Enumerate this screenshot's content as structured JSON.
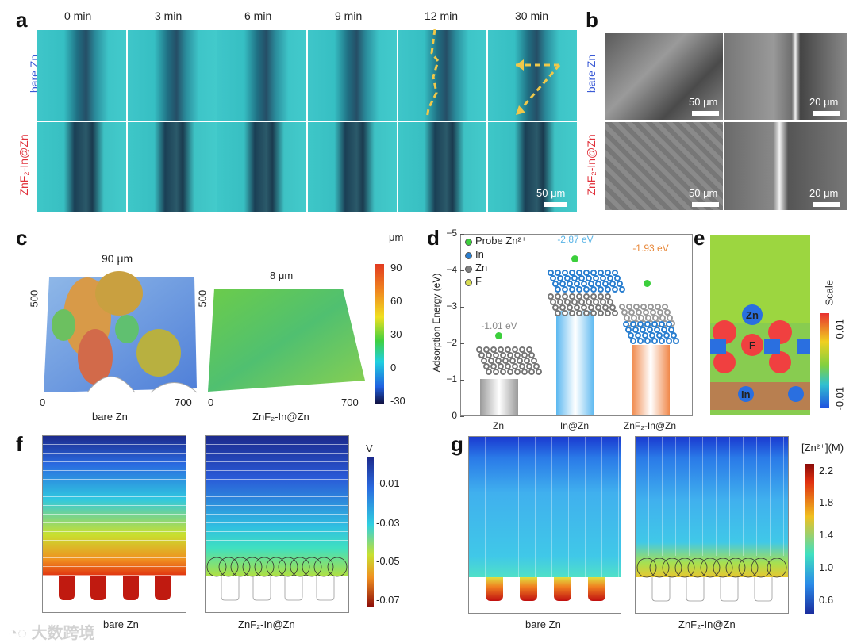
{
  "panel_a": {
    "label": "a",
    "times": [
      "0 min",
      "3 min",
      "6 min",
      "9 min",
      "12 min",
      "30 min"
    ],
    "row_labels": [
      "bare Zn",
      "ZnF₂-In@Zn"
    ],
    "scale_bar": "50 μm"
  },
  "panel_b": {
    "label": "b",
    "row_labels": [
      "bare Zn",
      "ZnF₂-In@Zn"
    ],
    "scale_bars": [
      "50 μm",
      "20 μm",
      "50 μm",
      "20 μm"
    ]
  },
  "panel_c": {
    "label": "c",
    "left_title": "90 μm",
    "right_title": "8 μm",
    "left_caption": "bare Zn",
    "right_caption": "ZnF₂-In@Zn",
    "axis": {
      "y": "500",
      "x0": "0",
      "x1": "700"
    },
    "colorbar": {
      "unit": "μm",
      "ticks": [
        "90",
        "60",
        "30",
        "0",
        "-30"
      ]
    }
  },
  "chart_data": {
    "type": "bar",
    "title": "",
    "xlabel": "",
    "ylabel": "Adsorption Energy (eV)",
    "categories": [
      "Zn",
      "In@Zn",
      "ZnF₂-In@Zn"
    ],
    "values": [
      -1.01,
      -2.87,
      -1.93
    ],
    "data_labels": [
      "-1.01 eV",
      "-2.87 eV",
      "-1.93 eV"
    ],
    "colors": [
      "#9a9a9a",
      "#5bb8f0",
      "#f0884a"
    ],
    "label_colors": [
      "#888888",
      "#5ab4e6",
      "#e8883a"
    ],
    "ylim": [
      0,
      -5
    ],
    "yticks": [
      "0",
      "−1",
      "−2",
      "−3",
      "−4",
      "−5"
    ],
    "legend": [
      {
        "label": "Probe Zn²⁺",
        "color": "#3ccf3c"
      },
      {
        "label": "In",
        "color": "#2a7fd0"
      },
      {
        "label": "Zn",
        "color": "#808080"
      },
      {
        "label": "F",
        "color": "#d8dc50"
      }
    ],
    "legend_position": "top-left",
    "panel_label": "d"
  },
  "panel_e": {
    "label": "e",
    "atoms": [
      "Zn",
      "F",
      "In"
    ],
    "colorbar": {
      "title": "Scale",
      "ticks": [
        "0.01",
        "-0.01"
      ]
    }
  },
  "panel_f": {
    "label": "f",
    "captions": [
      "bare Zn",
      "ZnF₂-In@Zn"
    ],
    "colorbar": {
      "unit": "V",
      "ticks": [
        "-0.01",
        "-0.03",
        "-0.05",
        "-0.07"
      ]
    }
  },
  "panel_g": {
    "label": "g",
    "captions": [
      "bare Zn",
      "ZnF₂-In@Zn"
    ],
    "colorbar": {
      "unit": "[Zn²⁺](M)",
      "ticks": [
        "2.2",
        "1.8",
        "1.4",
        "1.0",
        "0.6"
      ]
    }
  },
  "watermark": "大数跨境"
}
